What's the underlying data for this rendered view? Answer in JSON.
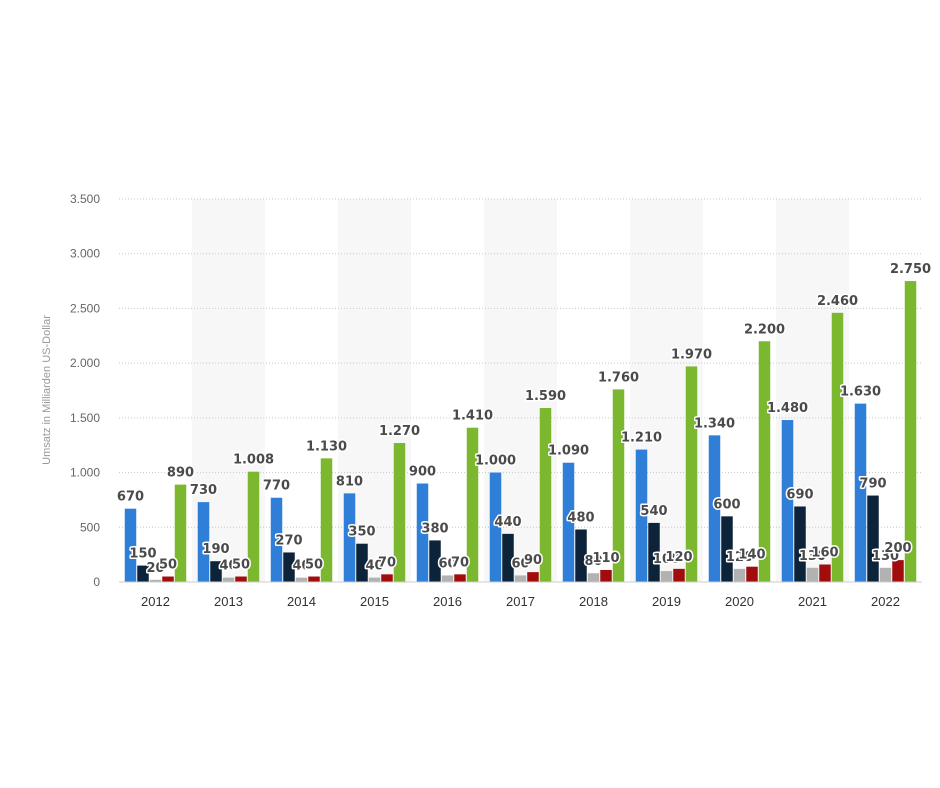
{
  "chart_data": {
    "type": "bar",
    "ylabel": "Umsatz in Milliarden US-Dollar",
    "xlabel": "",
    "ylim": [
      0,
      3500
    ],
    "yticks": [
      0,
      500,
      1000,
      1500,
      2000,
      2500,
      3000,
      3500
    ],
    "ytick_labels": [
      "0",
      "500",
      "1.000",
      "1.500",
      "2.000",
      "2.500",
      "3.000",
      "3.500"
    ],
    "grid": "horizontal dotted",
    "legend": "none",
    "categories": [
      "2012",
      "2013",
      "2014",
      "2015",
      "2016",
      "2017",
      "2018",
      "2019",
      "2020",
      "2021",
      "2022"
    ],
    "series": [
      {
        "color": "#2f7ed8",
        "values": [
          670,
          730,
          770,
          810,
          900,
          1000,
          1090,
          1210,
          1340,
          1480,
          1630
        ],
        "labels": [
          "670",
          "730",
          "770",
          "810",
          "900",
          "1.000",
          "1.090",
          "1.210",
          "1.340",
          "1.480",
          "1.630"
        ]
      },
      {
        "color": "#0d233a",
        "values": [
          150,
          190,
          270,
          350,
          380,
          440,
          480,
          540,
          600,
          690,
          790
        ],
        "labels": [
          "150",
          "190",
          "270",
          "350",
          "380",
          "440",
          "480",
          "540",
          "600",
          "690",
          "790"
        ]
      },
      {
        "color": "#b2b2b2",
        "values": [
          20,
          40,
          40,
          40,
          60,
          60,
          80,
          100,
          120,
          130,
          130
        ],
        "labels": [
          "20",
          "40",
          "40",
          "40",
          "60",
          "60",
          "80",
          "100",
          "120",
          "130",
          "130"
        ]
      },
      {
        "color": "#a10d0d",
        "values": [
          50,
          50,
          50,
          70,
          70,
          90,
          110,
          120,
          140,
          160,
          200
        ],
        "labels": [
          "50",
          "50",
          "50",
          "70",
          "70",
          "90",
          "110",
          "120",
          "140",
          "160",
          "200"
        ]
      },
      {
        "color": "#7cb82f",
        "values": [
          890,
          1008,
          1130,
          1270,
          1410,
          1590,
          1760,
          1970,
          2200,
          2460,
          2750
        ],
        "labels": [
          "890",
          "1.008",
          "1.130",
          "1.270",
          "1.410",
          "1.590",
          "1.760",
          "1.970",
          "2.200",
          "2.460",
          "2.750"
        ]
      }
    ]
  }
}
